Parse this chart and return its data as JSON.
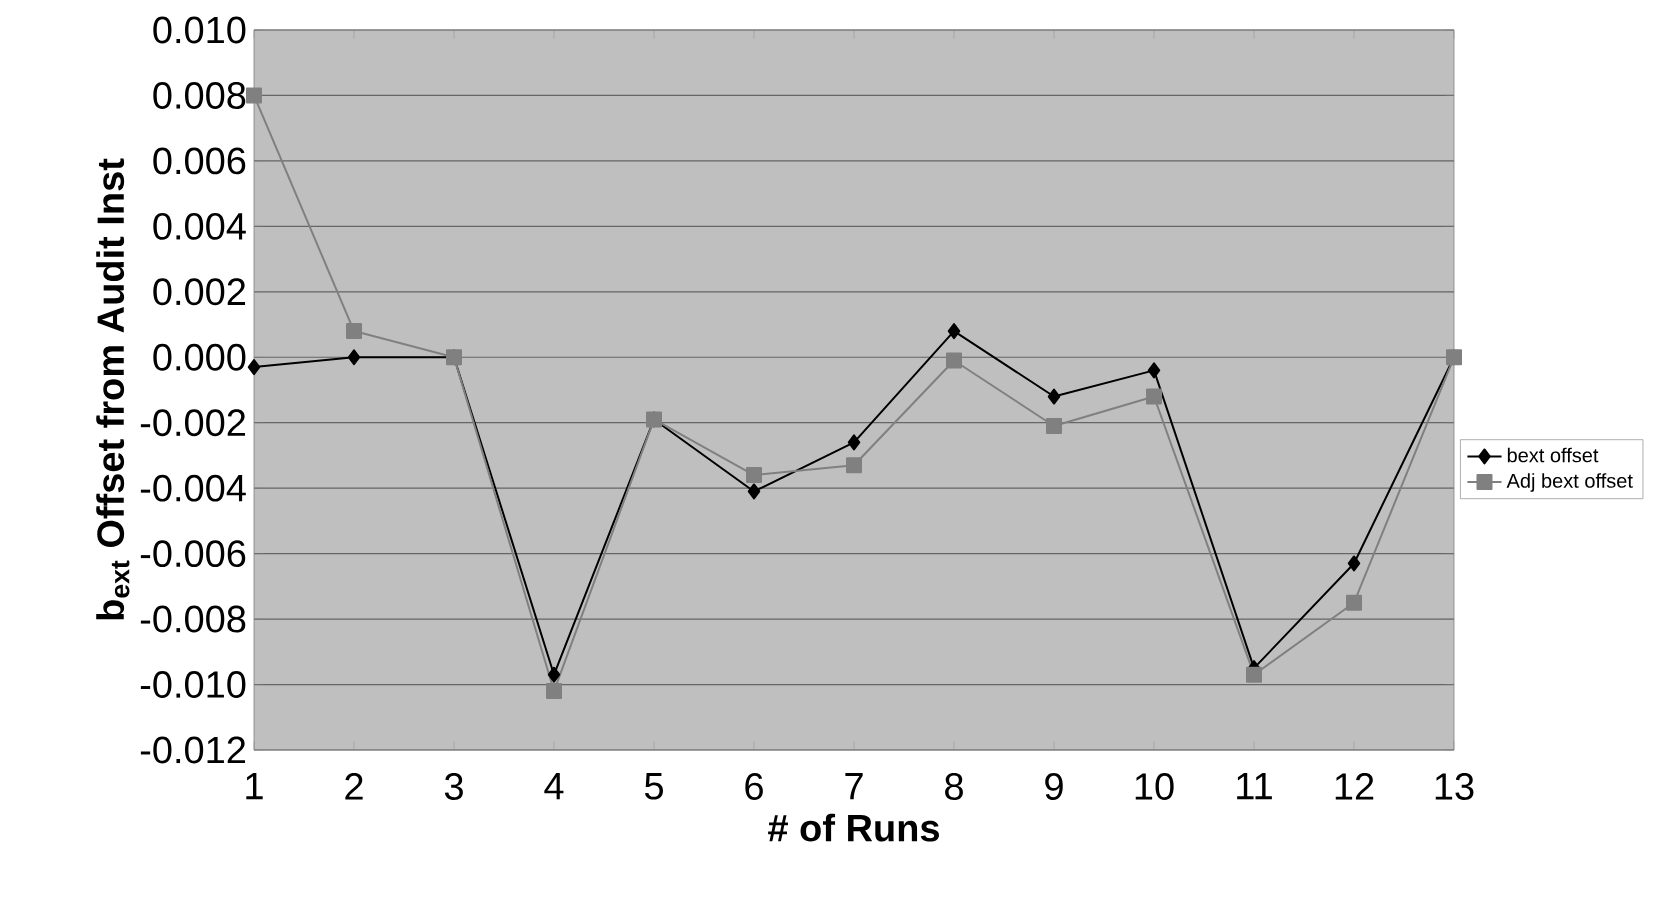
{
  "chart_data": {
    "type": "line",
    "xlabel": "# of Runs",
    "ylabel": "b$_{ext}$ Offset from Audit Inst",
    "categories": [
      "1",
      "2",
      "3",
      "4",
      "5",
      "6",
      "7",
      "8",
      "9",
      "10",
      "11",
      "12",
      "13"
    ],
    "series": [
      {
        "name": "bext offset",
        "color": "#000000",
        "marker": "diamond",
        "values": [
          -0.0003,
          0.0,
          0.0,
          -0.0097,
          -0.0019,
          -0.0041,
          -0.0026,
          0.0008,
          -0.0012,
          -0.0004,
          -0.0095,
          -0.0063,
          0.0
        ]
      },
      {
        "name": "Adj bext offset",
        "color": "#808080",
        "marker": "square",
        "values": [
          0.008,
          0.0008,
          0.0,
          -0.0102,
          -0.0019,
          -0.0036,
          -0.0033,
          -0.0001,
          -0.0021,
          -0.0012,
          -0.0097,
          -0.0075,
          0.0
        ]
      }
    ],
    "ylim": [
      -0.012,
      0.01
    ],
    "yticks": [
      {
        "value": -0.012,
        "label": "-0.012"
      },
      {
        "value": -0.01,
        "label": "-0.010"
      },
      {
        "value": -0.008,
        "label": "-0.008"
      },
      {
        "value": -0.006,
        "label": "-0.006"
      },
      {
        "value": -0.004,
        "label": "-0.004"
      },
      {
        "value": -0.002,
        "label": "-0.002"
      },
      {
        "value": 0.0,
        "label": "0.000"
      },
      {
        "value": 0.002,
        "label": "0.002"
      },
      {
        "value": 0.004,
        "label": "0.004"
      },
      {
        "value": 0.006,
        "label": "0.006"
      },
      {
        "value": 0.008,
        "label": "0.008"
      },
      {
        "value": 0.01,
        "label": "0.010"
      }
    ],
    "grid": "y",
    "legend": "right",
    "line_style": "solid"
  }
}
